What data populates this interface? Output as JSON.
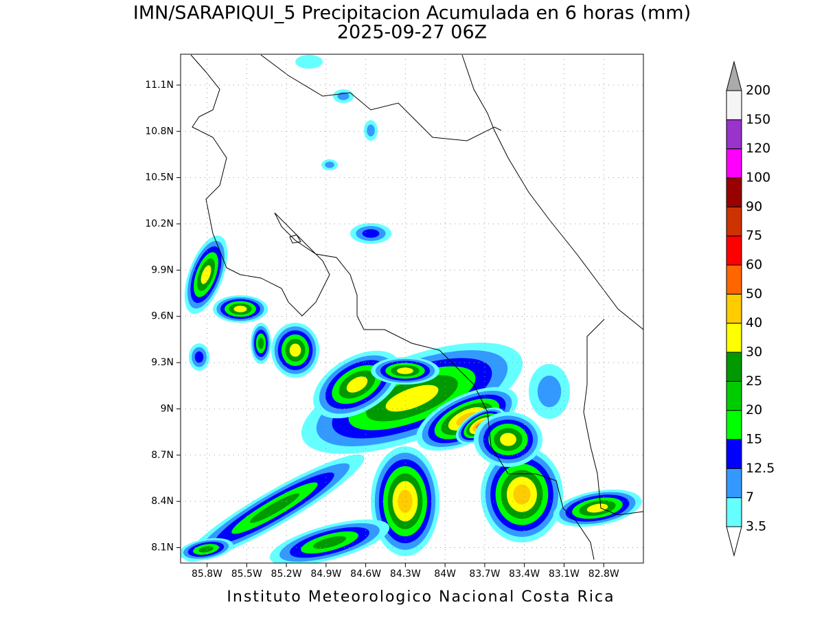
{
  "header": {
    "title": "IMN/SARAPIQUI_5 Precipitacion Acumulada en 6 horas (mm)",
    "subtitle": "2025-09-27 06Z"
  },
  "map": {
    "lonlim": [
      -86.0,
      -82.5
    ],
    "latlim": [
      8.0,
      11.3
    ],
    "grid": true,
    "lat_ticks": [
      {
        "value": 8.1,
        "label": "8.1N"
      },
      {
        "value": 8.4,
        "label": "8.4N"
      },
      {
        "value": 8.7,
        "label": "8.7N"
      },
      {
        "value": 9.0,
        "label": "9N"
      },
      {
        "value": 9.3,
        "label": "9.3N"
      },
      {
        "value": 9.6,
        "label": "9.6N"
      },
      {
        "value": 9.9,
        "label": "9.9N"
      },
      {
        "value": 10.2,
        "label": "10.2N"
      },
      {
        "value": 10.5,
        "label": "10.5N"
      },
      {
        "value": 10.8,
        "label": "10.8N"
      },
      {
        "value": 11.1,
        "label": "11.1N"
      }
    ],
    "lon_ticks": [
      {
        "value": -85.8,
        "label": "85.8W"
      },
      {
        "value": -85.5,
        "label": "85.5W"
      },
      {
        "value": -85.2,
        "label": "85.2W"
      },
      {
        "value": -84.9,
        "label": "84.9W"
      },
      {
        "value": -84.6,
        "label": "84.6W"
      },
      {
        "value": -84.3,
        "label": "84.3W"
      },
      {
        "value": -84.0,
        "label": "84W"
      },
      {
        "value": -83.7,
        "label": "83.7W"
      },
      {
        "value": -83.4,
        "label": "83.4W"
      },
      {
        "value": -83.1,
        "label": "83.1W"
      },
      {
        "value": -82.8,
        "label": "82.8W"
      }
    ]
  },
  "colorbar": {
    "levels": [
      3.5,
      7,
      12.5,
      15,
      20,
      25,
      30,
      40,
      50,
      60,
      75,
      90,
      100,
      120,
      150,
      200
    ],
    "colors": [
      "#66ffff",
      "#3399ff",
      "#0000ff",
      "#00ff00",
      "#00cc00",
      "#009900",
      "#ffff00",
      "#ffcc00",
      "#ff6600",
      "#ff0000",
      "#cc3300",
      "#990000",
      "#ff00ff",
      "#9933cc",
      "#f5f5f5"
    ],
    "under_color": "#ffffff",
    "over_color": "#aaaaaa"
  },
  "footer": "Instituto Meteorologico Nacional Costa Rica"
}
